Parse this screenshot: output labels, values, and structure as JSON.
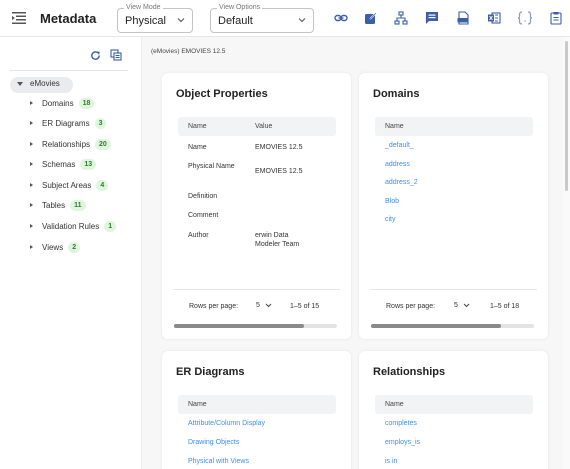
{
  "app": {
    "title": "Metadata"
  },
  "toolbar": {
    "view_mode": {
      "legend": "View Mode",
      "value": "Physical"
    },
    "view_options": {
      "legend": "View Options",
      "value": "Default"
    },
    "icons": [
      "link-icon",
      "export-icon",
      "hierarchy-icon",
      "comment-icon",
      "csv-icon",
      "excel-icon",
      "braces-icon",
      "report-icon"
    ]
  },
  "tree": {
    "root": "eMovies",
    "items": [
      {
        "label": "Domains",
        "count": "18"
      },
      {
        "label": "ER Diagrams",
        "count": "3"
      },
      {
        "label": "Relationships",
        "count": "20"
      },
      {
        "label": "Schemas",
        "count": "13"
      },
      {
        "label": "Subject Areas",
        "count": "4"
      },
      {
        "label": "Tables",
        "count": "11"
      },
      {
        "label": "Validation Rules",
        "count": "1"
      },
      {
        "label": "Views",
        "count": "2"
      }
    ]
  },
  "breadcrumb": "(eMovies) EMOVIES 12.5",
  "object_properties": {
    "title": "Object Properties",
    "columns": [
      "Name",
      "Value"
    ],
    "rows": [
      {
        "name": "Name",
        "value": "EMOVIES 12.5"
      },
      {
        "name": "Physical Name",
        "value": "EMOVIES 12.5"
      },
      {
        "name": "Definition",
        "value": ""
      },
      {
        "name": "Comment",
        "value": ""
      },
      {
        "name": "Author",
        "value": "erwin Data Modeler Team"
      }
    ],
    "rows_per_page_label": "Rows per page:",
    "rows_per_page": "5",
    "range": "1–5 of 15",
    "scroll_fraction": 0.8
  },
  "domains": {
    "title": "Domains",
    "column": "Name",
    "rows": [
      "_default_",
      "address",
      "address_2",
      "Blob",
      "city"
    ],
    "rows_per_page_label": "Rows per page:",
    "rows_per_page": "5",
    "range": "1–5 of 18",
    "scroll_fraction": 0.8
  },
  "er_diagrams": {
    "title": "ER Diagrams",
    "column": "Name",
    "rows": [
      "Attribute/Column Display",
      "Drawing Objects",
      "Physical with Views"
    ]
  },
  "relationships": {
    "title": "Relationships",
    "column": "Name",
    "rows": [
      "completes",
      "employs_is",
      "is in"
    ]
  },
  "colors": {
    "link": "#3b8ff5",
    "badge_bg": "#dff5dc",
    "badge_fg": "#2e7d32"
  }
}
